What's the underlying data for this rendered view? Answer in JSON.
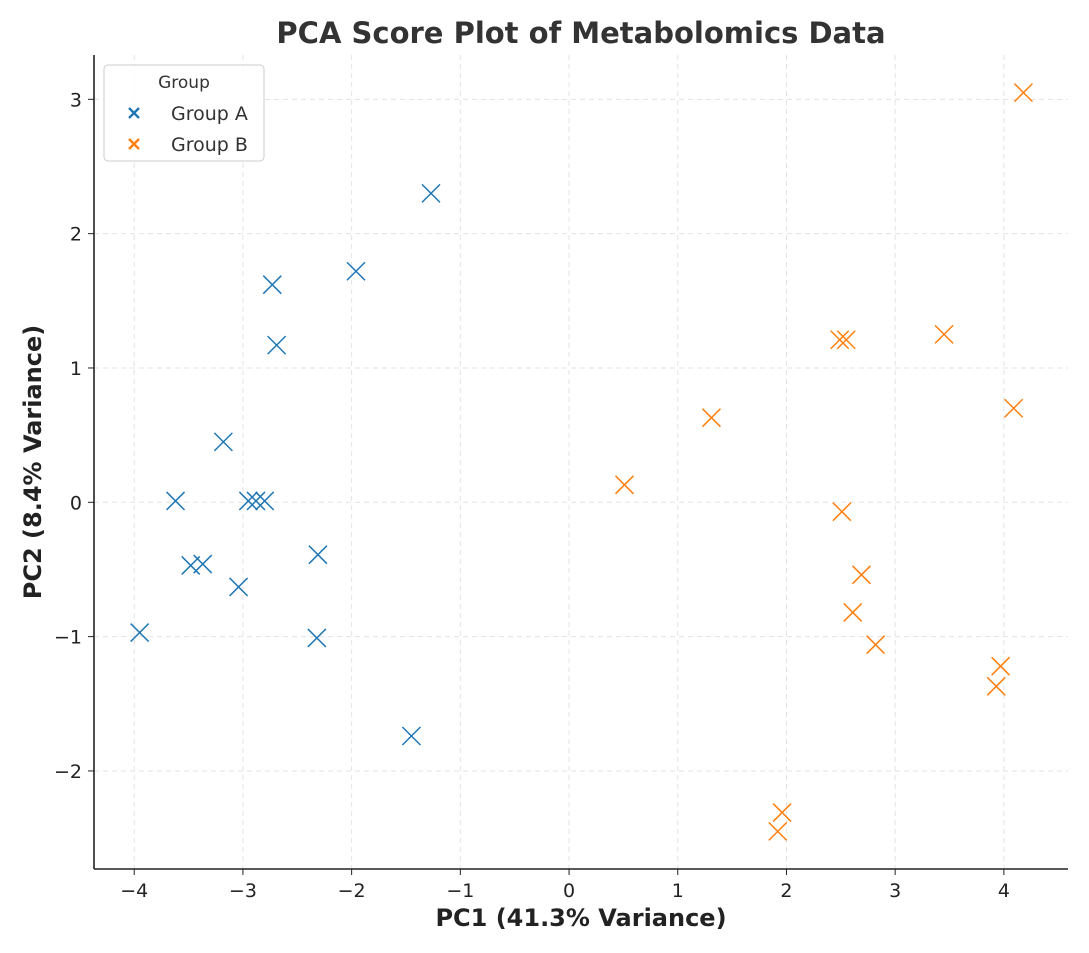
{
  "chart_data": {
    "type": "scatter",
    "title": "PCA Score Plot of Metabolomics Data",
    "xlabel": "PC1 (41.3% Variance)",
    "ylabel": "PC2 (8.4% Variance)",
    "xlim": [
      -4.37,
      4.59
    ],
    "ylim": [
      -2.73,
      3.33
    ],
    "xticks": [
      -4,
      -3,
      -2,
      -1,
      0,
      1,
      2,
      3,
      4
    ],
    "yticks": [
      -2,
      -1,
      0,
      1,
      2,
      3
    ],
    "xtick_labels": [
      "−4",
      "−3",
      "−2",
      "−1",
      "0",
      "1",
      "2",
      "3",
      "4"
    ],
    "ytick_labels": [
      "−2",
      "−1",
      "0",
      "1",
      "2",
      "3"
    ],
    "grid": true,
    "marker": "x",
    "legend": {
      "title": "Group",
      "placement": "top-left"
    },
    "series": [
      {
        "name": "Group A",
        "color": "#1f77b4",
        "points": [
          [
            -1.27,
            2.3
          ],
          [
            -1.96,
            1.72
          ],
          [
            -2.73,
            1.62
          ],
          [
            -2.69,
            1.17
          ],
          [
            -3.18,
            0.45
          ],
          [
            -3.62,
            0.01
          ],
          [
            -2.95,
            0.01
          ],
          [
            -2.88,
            0.01
          ],
          [
            -2.8,
            0.01
          ],
          [
            -3.48,
            -0.47
          ],
          [
            -3.37,
            -0.46
          ],
          [
            -2.31,
            -0.39
          ],
          [
            -3.04,
            -0.63
          ],
          [
            -3.95,
            -0.97
          ],
          [
            -2.32,
            -1.01
          ],
          [
            -1.45,
            -1.74
          ]
        ]
      },
      {
        "name": "Group B",
        "color": "#ff7f0e",
        "points": [
          [
            4.18,
            3.05
          ],
          [
            3.45,
            1.25
          ],
          [
            2.49,
            1.21
          ],
          [
            2.55,
            1.21
          ],
          [
            4.09,
            0.7
          ],
          [
            1.31,
            0.63
          ],
          [
            0.51,
            0.13
          ],
          [
            2.51,
            -0.07
          ],
          [
            2.69,
            -0.54
          ],
          [
            2.61,
            -0.82
          ],
          [
            2.82,
            -1.06
          ],
          [
            3.97,
            -1.22
          ],
          [
            3.93,
            -1.37
          ],
          [
            1.96,
            -2.31
          ],
          [
            1.92,
            -2.45
          ]
        ]
      }
    ]
  }
}
